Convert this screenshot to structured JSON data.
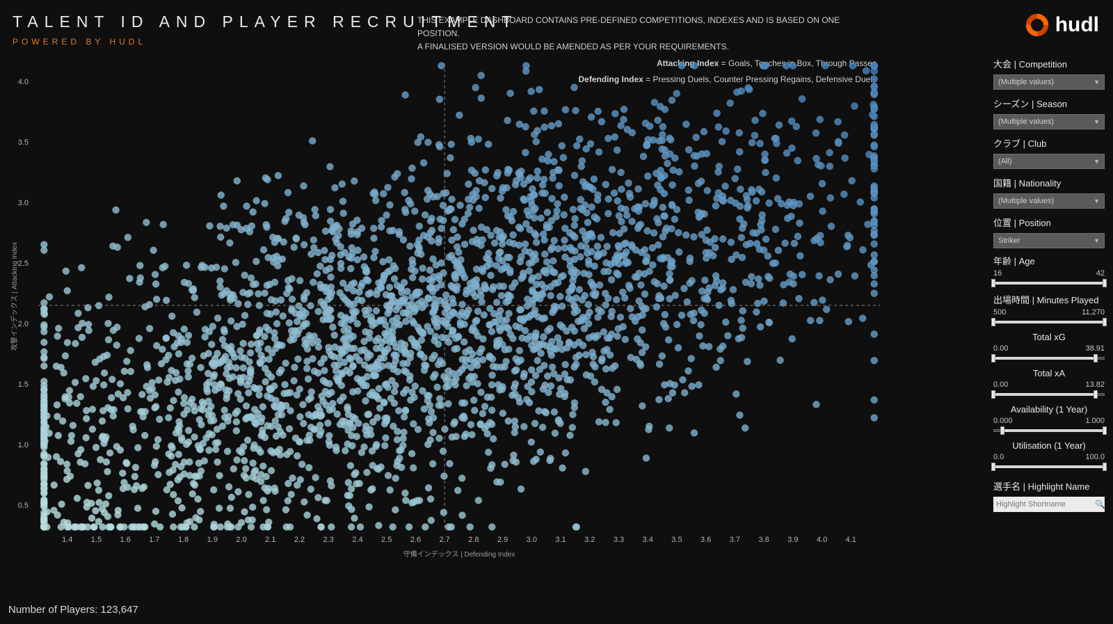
{
  "header": {
    "title": "TALENT ID AND PLAYER RECRUITMENT",
    "subtitle": "POWERED BY HUDL",
    "desc1": "THIS EXAMPLE DASHBOARD CONTAINS PRE-DEFINED COMPETITIONS, INDEXES AND IS BASED ON ONE POSITION.",
    "desc2": "A FINALISED VERSION WOULD BE AMENDED AS PER YOUR REQUIREMENTS.",
    "idx1_label": "Attacking Index",
    "idx1_def": " = Goals, Touches in Box, Through Passes",
    "idx2_label": "Defending Index",
    "idx2_def": " = Pressing Duels, Counter Pressing Regains, Defensive Duels"
  },
  "logo": {
    "text": "hudl",
    "brand_color": "#ff6600"
  },
  "chart": {
    "type": "scatter",
    "xlabel": "守備インデックス | Defending Index",
    "ylabel": "攻撃インデックス | Attacking Index",
    "xlim": [
      1.3,
      4.2
    ],
    "ylim": [
      0.3,
      4.15
    ],
    "xticks": [
      1.4,
      1.5,
      1.6,
      1.7,
      1.8,
      1.9,
      2.0,
      2.1,
      2.2,
      2.3,
      2.4,
      2.5,
      2.6,
      2.7,
      2.8,
      2.9,
      3.0,
      3.1,
      3.2,
      3.3,
      3.4,
      3.5,
      3.6,
      3.7,
      3.8,
      3.9,
      4.0,
      4.1
    ],
    "yticks": [
      0.5,
      1.0,
      1.5,
      2.0,
      2.5,
      3.0,
      3.5,
      4.0
    ],
    "ref_x": 2.7,
    "ref_y": 2.15,
    "background": "#0f0f0f",
    "point_radius": 5,
    "point_stroke": "#9fb8c6",
    "point_stroke_width": 0.3,
    "point_opacity": 0.82,
    "n_points": 2800,
    "color_low": "#b9e0dd",
    "color_high": "#3f7fbf",
    "cluster": {
      "mx": 2.75,
      "my": 2.1,
      "sx": 0.72,
      "sy": 0.85,
      "corr": 0.62,
      "tail_low": true
    }
  },
  "footer": {
    "players_label": "Number of Players: ",
    "players_value": "123,647"
  },
  "sidebar": {
    "filters": [
      {
        "label": "大会 | Competition",
        "value": "(Multiple values)"
      },
      {
        "label": "シーズン | Season",
        "value": "(Multiple values)"
      },
      {
        "label": "クラブ | Club",
        "value": "(All)"
      },
      {
        "label": "国籍 | Nationality",
        "value": "(Multiple values)"
      },
      {
        "label": "位置 | Position",
        "value": "Striker"
      }
    ],
    "sliders": [
      {
        "label": "年齢 | Age",
        "align": "left",
        "min": "16",
        "max": "42",
        "lo": 0.0,
        "hi": 1.0
      },
      {
        "label": "出場時間 | Minutes Played",
        "align": "left",
        "min": "500",
        "max": "11,270",
        "lo": 0.0,
        "hi": 1.0
      },
      {
        "label": "Total xG",
        "align": "center",
        "min": "0.00",
        "max": "38.91",
        "lo": 0.0,
        "hi": 0.92
      },
      {
        "label": "Total xA",
        "align": "center",
        "min": "0.00",
        "max": "13.82",
        "lo": 0.0,
        "hi": 0.92
      },
      {
        "label": "Availability (1 Year)",
        "align": "center",
        "min": "0.000",
        "max": "1.000",
        "lo": 0.08,
        "hi": 1.0
      },
      {
        "label": "Utilisation (1 Year)",
        "align": "center",
        "min": "0.0",
        "max": "100.0",
        "lo": 0.0,
        "hi": 1.0
      }
    ],
    "highlight": {
      "label": "選手名 | Highlight Name",
      "placeholder": "Highlight Shortname"
    }
  }
}
